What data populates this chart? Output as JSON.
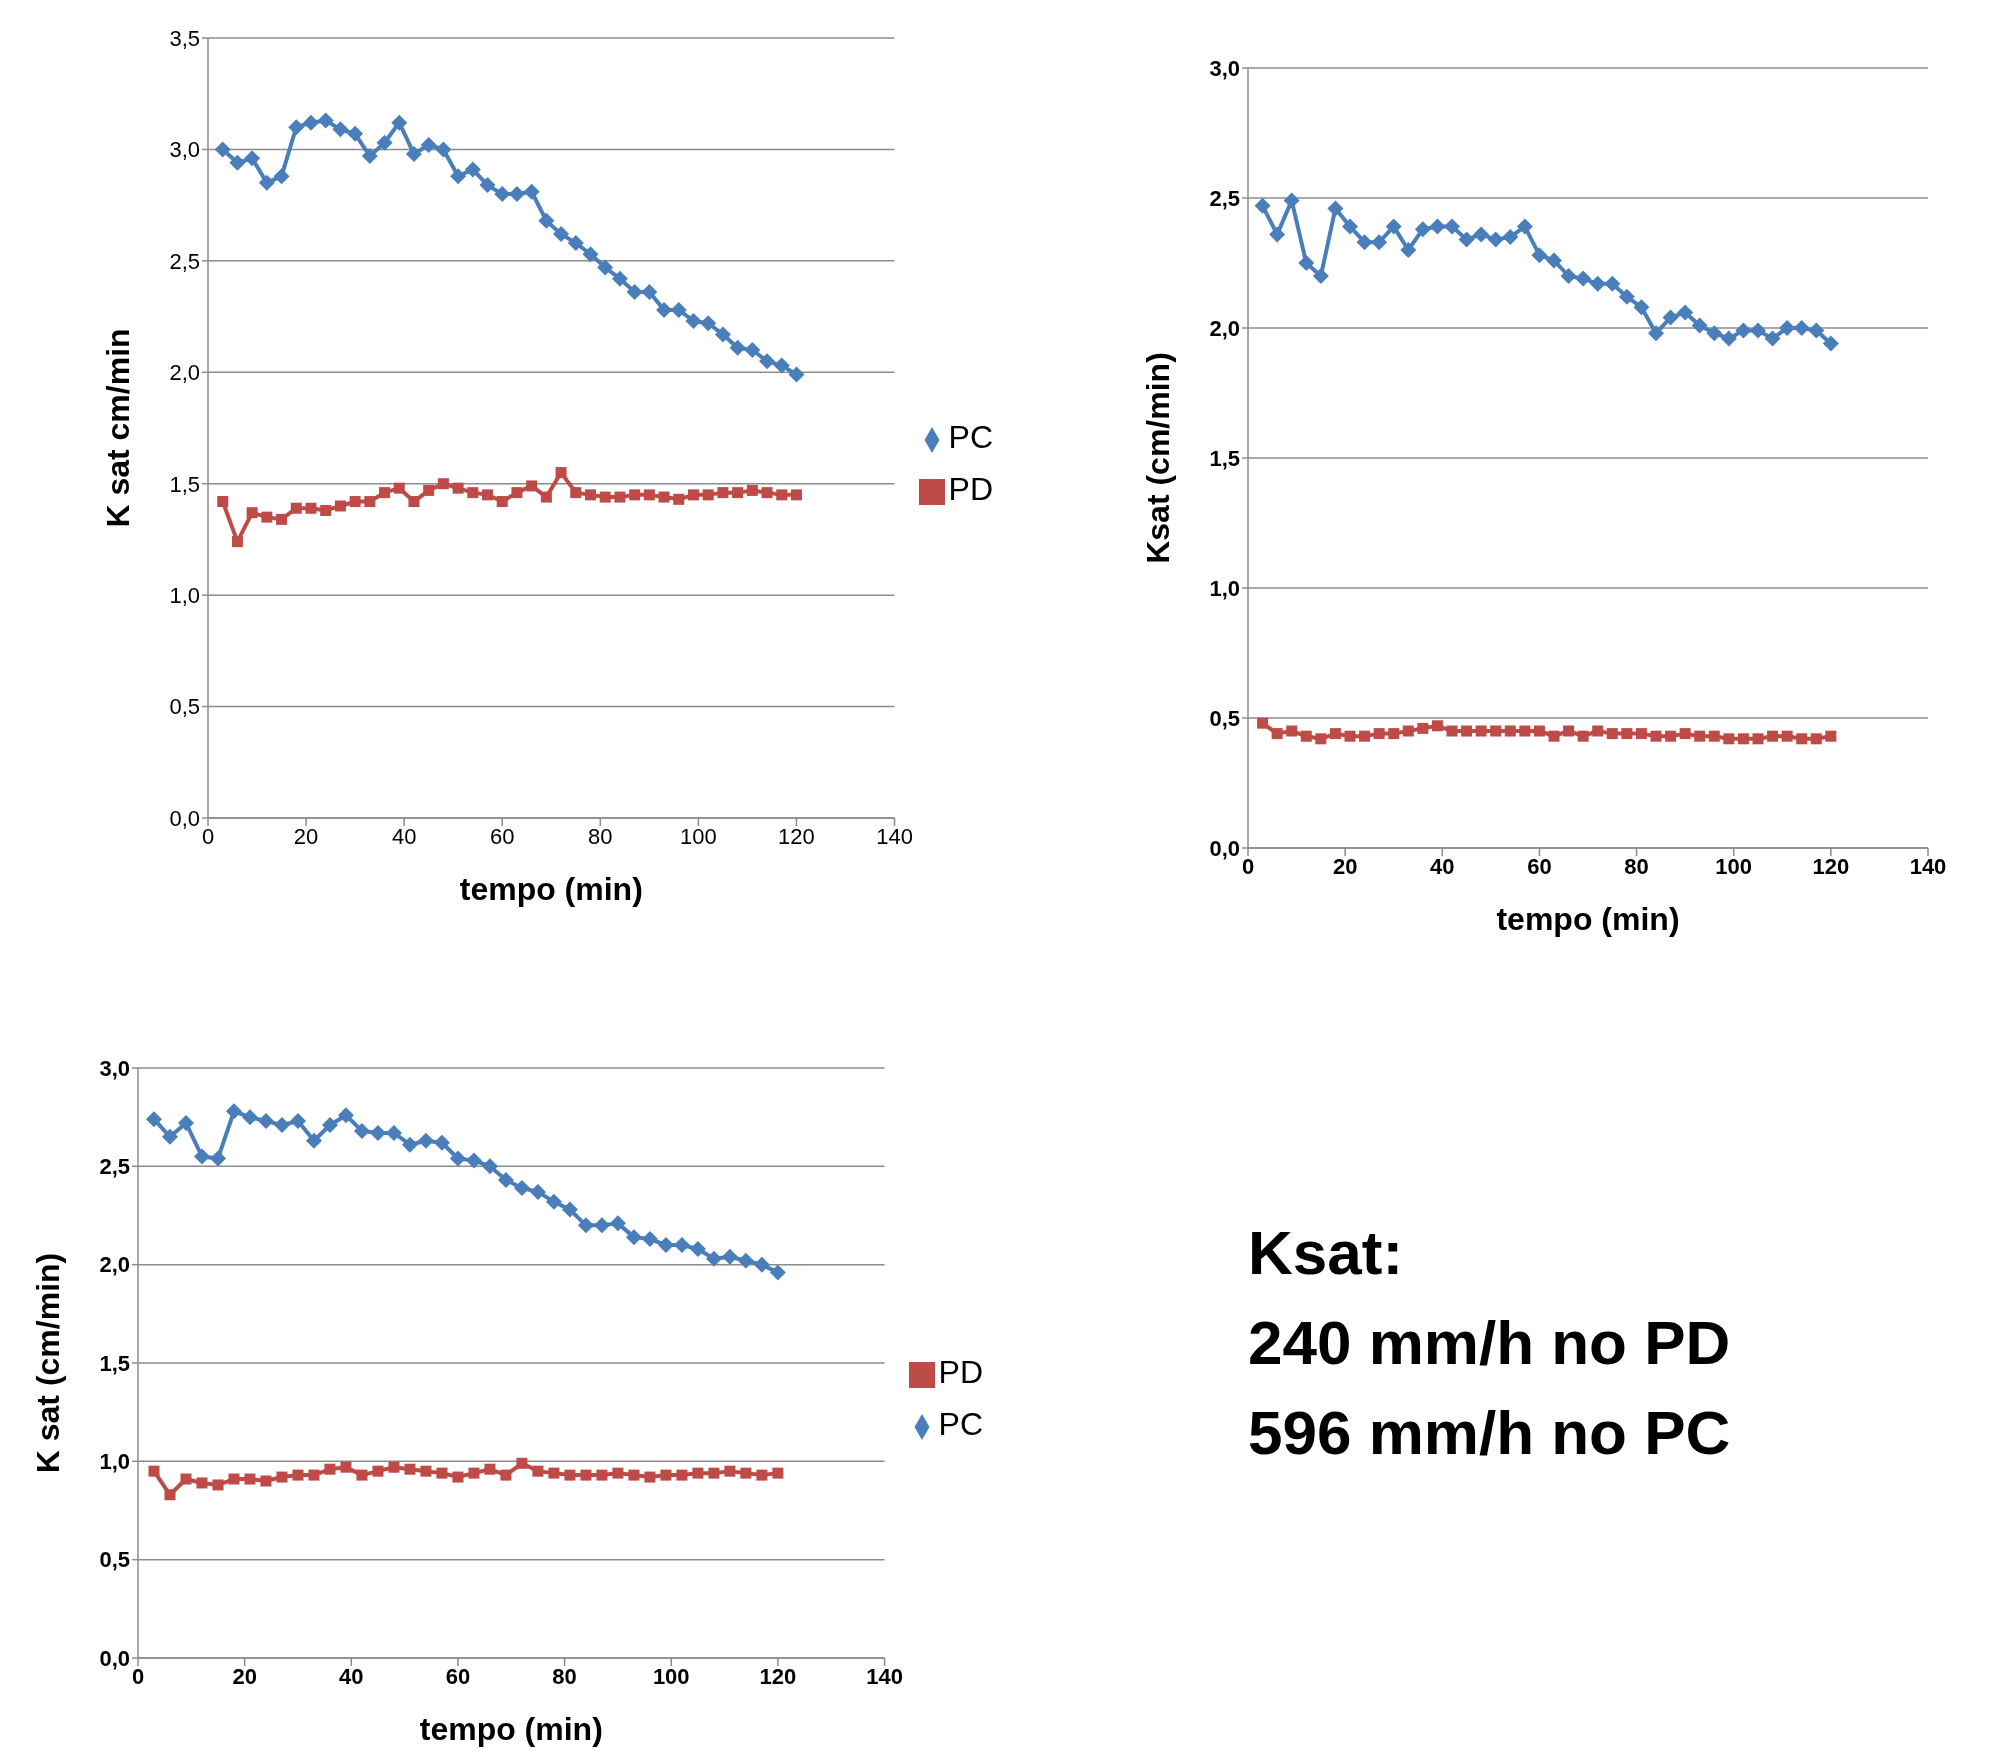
{
  "chart_data": [
    {
      "type": "line",
      "xlabel": "tempo (min)",
      "ylabel": "K sat  cm/min",
      "x": [
        3,
        6,
        9,
        12,
        15,
        18,
        21,
        24,
        27,
        30,
        33,
        36,
        39,
        42,
        45,
        48,
        51,
        54,
        57,
        60,
        63,
        66,
        69,
        72,
        75,
        78,
        81,
        84,
        87,
        90,
        93,
        96,
        99,
        102,
        105,
        108,
        111,
        114,
        117,
        120
      ],
      "xlim": [
        0,
        140
      ],
      "xticks": [
        0,
        20,
        40,
        60,
        80,
        100,
        120,
        140
      ],
      "ylim": [
        0,
        3.5
      ],
      "yticks": [
        {
          "value": 0,
          "label": "0,0"
        },
        {
          "value": 0.5,
          "label": "0,5"
        },
        {
          "value": 1,
          "label": "1,0"
        },
        {
          "value": 1.5,
          "label": "1,5"
        },
        {
          "value": 2,
          "label": "2,0"
        },
        {
          "value": 2.5,
          "label": "2,5"
        },
        {
          "value": 3,
          "label": "3,0"
        },
        {
          "value": 3.5,
          "label": "3,5"
        }
      ],
      "grid": "y",
      "legend": "right",
      "line_style": "solid",
      "series": [
        {
          "name": "PC",
          "color": "#4a7ebb",
          "marker": "diamond",
          "values": [
            3.0,
            2.94,
            2.96,
            2.85,
            2.88,
            3.1,
            3.12,
            3.13,
            3.09,
            3.07,
            2.97,
            3.03,
            3.12,
            2.98,
            3.02,
            3.0,
            2.88,
            2.91,
            2.84,
            2.8,
            2.8,
            2.81,
            2.68,
            2.62,
            2.58,
            2.53,
            2.47,
            2.42,
            2.36,
            2.36,
            2.28,
            2.28,
            2.23,
            2.22,
            2.17,
            2.11,
            2.1,
            2.05,
            2.03,
            1.99
          ]
        },
        {
          "name": "PD",
          "color": "#be4b48",
          "marker": "square",
          "values": [
            1.42,
            1.24,
            1.37,
            1.35,
            1.34,
            1.39,
            1.39,
            1.38,
            1.4,
            1.42,
            1.42,
            1.46,
            1.48,
            1.42,
            1.47,
            1.5,
            1.48,
            1.46,
            1.45,
            1.42,
            1.46,
            1.49,
            1.44,
            1.55,
            1.46,
            1.45,
            1.44,
            1.44,
            1.45,
            1.45,
            1.44,
            1.43,
            1.45,
            1.45,
            1.46,
            1.46,
            1.47,
            1.46,
            1.45,
            1.45
          ]
        }
      ]
    },
    {
      "type": "line",
      "xlabel": "tempo (min)",
      "ylabel": "Ksat   (cm/min)",
      "x": [
        3,
        6,
        9,
        12,
        15,
        18,
        21,
        24,
        27,
        30,
        33,
        36,
        39,
        42,
        45,
        48,
        51,
        54,
        57,
        60,
        63,
        66,
        69,
        72,
        75,
        78,
        81,
        84,
        87,
        90,
        93,
        96,
        99,
        102,
        105,
        108,
        111,
        114,
        117,
        120
      ],
      "xlim": [
        0,
        140
      ],
      "xticks": [
        0,
        20,
        40,
        60,
        80,
        100,
        120,
        140
      ],
      "ylim": [
        0,
        3
      ],
      "yticks": [
        {
          "value": 0,
          "label": "0,0"
        },
        {
          "value": 0.5,
          "label": "0,5"
        },
        {
          "value": 1,
          "label": "1,0"
        },
        {
          "value": 1.5,
          "label": "1,5"
        },
        {
          "value": 2,
          "label": "2,0"
        },
        {
          "value": 2.5,
          "label": "2,5"
        },
        {
          "value": 3,
          "label": "3,0"
        }
      ],
      "grid": "y",
      "line_style": "solid",
      "series": [
        {
          "color": "#4a7ebb",
          "marker": "diamond",
          "values": [
            2.47,
            2.36,
            2.49,
            2.25,
            2.2,
            2.46,
            2.39,
            2.33,
            2.33,
            2.39,
            2.3,
            2.38,
            2.39,
            2.39,
            2.34,
            2.36,
            2.34,
            2.35,
            2.39,
            2.28,
            2.26,
            2.2,
            2.19,
            2.17,
            2.17,
            2.12,
            2.08,
            1.98,
            2.04,
            2.06,
            2.01,
            1.98,
            1.96,
            1.99,
            1.99,
            1.96,
            2.0,
            2.0,
            1.99,
            1.94
          ]
        },
        {
          "color": "#be4b48",
          "marker": "square",
          "values": [
            0.48,
            0.44,
            0.45,
            0.43,
            0.42,
            0.44,
            0.43,
            0.43,
            0.44,
            0.44,
            0.45,
            0.46,
            0.47,
            0.45,
            0.45,
            0.45,
            0.45,
            0.45,
            0.45,
            0.45,
            0.43,
            0.45,
            0.43,
            0.45,
            0.44,
            0.44,
            0.44,
            0.43,
            0.43,
            0.44,
            0.43,
            0.43,
            0.42,
            0.42,
            0.42,
            0.43,
            0.43,
            0.42,
            0.42,
            0.43
          ]
        }
      ]
    },
    {
      "type": "line",
      "xlabel": "tempo (min)",
      "ylabel": "K sat  (cm/min)",
      "x": [
        3,
        6,
        9,
        12,
        15,
        18,
        21,
        24,
        27,
        30,
        33,
        36,
        39,
        42,
        45,
        48,
        51,
        54,
        57,
        60,
        63,
        66,
        69,
        72,
        75,
        78,
        81,
        84,
        87,
        90,
        93,
        96,
        99,
        102,
        105,
        108,
        111,
        114,
        117,
        120
      ],
      "xlim": [
        0,
        140
      ],
      "xticks": [
        0,
        20,
        40,
        60,
        80,
        100,
        120,
        140
      ],
      "ylim": [
        0,
        3
      ],
      "yticks": [
        {
          "value": 0,
          "label": "0,0"
        },
        {
          "value": 0.5,
          "label": "0,5"
        },
        {
          "value": 1,
          "label": "1,0"
        },
        {
          "value": 1.5,
          "label": "1,5"
        },
        {
          "value": 2,
          "label": "2,0"
        },
        {
          "value": 2.5,
          "label": "2,5"
        },
        {
          "value": 3,
          "label": "3,0"
        }
      ],
      "grid": "y",
      "legend": "right",
      "line_style": "solid",
      "series": [
        {
          "name": "PD",
          "color": "#be4b48",
          "marker": "square",
          "values": [
            0.95,
            0.83,
            0.91,
            0.89,
            0.88,
            0.91,
            0.91,
            0.9,
            0.92,
            0.93,
            0.93,
            0.96,
            0.97,
            0.93,
            0.95,
            0.97,
            0.96,
            0.95,
            0.94,
            0.92,
            0.94,
            0.96,
            0.93,
            0.99,
            0.95,
            0.94,
            0.93,
            0.93,
            0.93,
            0.94,
            0.93,
            0.92,
            0.93,
            0.93,
            0.94,
            0.94,
            0.95,
            0.94,
            0.93,
            0.94
          ]
        },
        {
          "name": "PC",
          "color": "#4a7ebb",
          "marker": "diamond",
          "values": [
            2.74,
            2.65,
            2.72,
            2.55,
            2.54,
            2.78,
            2.75,
            2.73,
            2.71,
            2.73,
            2.63,
            2.71,
            2.76,
            2.68,
            2.67,
            2.67,
            2.61,
            2.63,
            2.62,
            2.54,
            2.53,
            2.5,
            2.43,
            2.39,
            2.37,
            2.32,
            2.28,
            2.2,
            2.2,
            2.21,
            2.14,
            2.13,
            2.1,
            2.1,
            2.08,
            2.03,
            2.04,
            2.02,
            2.0,
            1.96
          ]
        }
      ]
    },
    {
      "type": "other",
      "title": "Ksat:",
      "annotations": [
        "240 mm/h no PD",
        "596 mm/h no PC"
      ]
    }
  ]
}
